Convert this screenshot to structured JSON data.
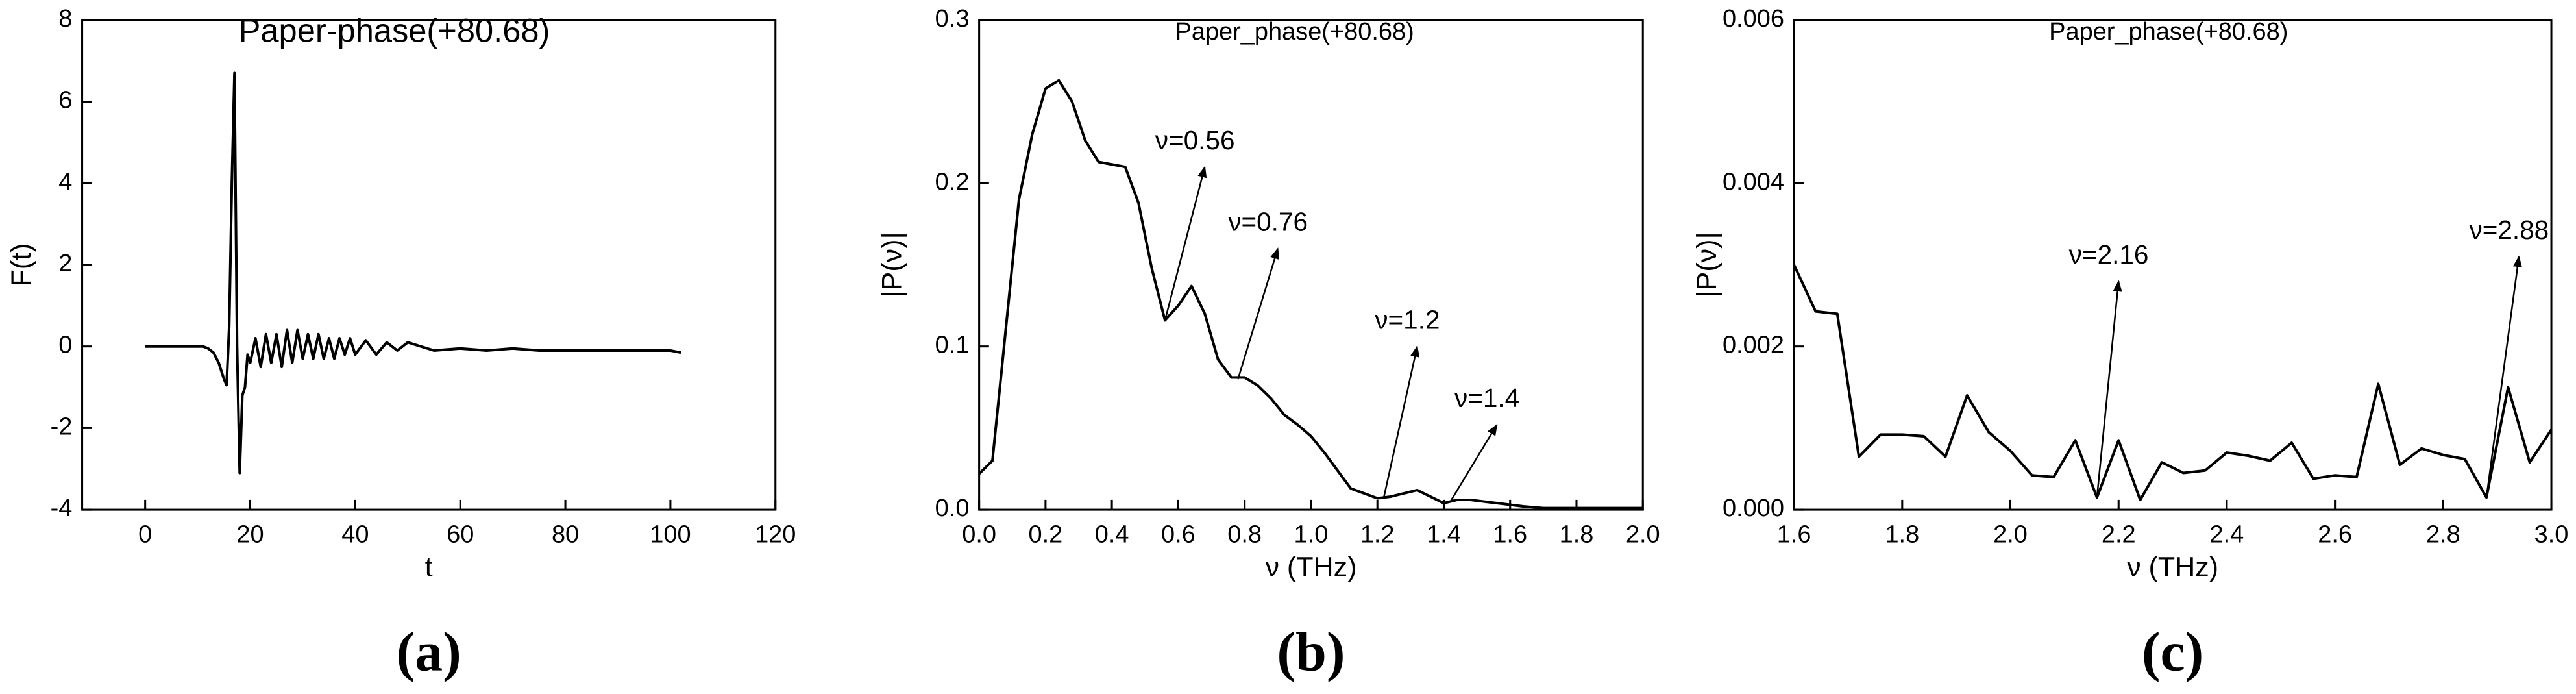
{
  "chart_data": [
    {
      "type": "line",
      "title": "Paper-phase(+80.68)",
      "panel_label": "(a)",
      "xlabel": "t",
      "ylabel": "F(t)",
      "xlim": [
        -12,
        120
      ],
      "ylim": [
        -4,
        8
      ],
      "xticks": [
        0,
        20,
        40,
        60,
        80,
        100,
        120
      ],
      "yticks": [
        -4,
        -2,
        0,
        2,
        4,
        6,
        8
      ],
      "x": [
        0,
        2,
        4,
        6,
        8,
        10,
        11,
        12,
        13,
        14,
        15,
        15.5,
        16,
        16.5,
        17,
        17.5,
        18,
        18.5,
        19,
        19.5,
        20,
        21,
        22,
        23,
        24,
        25,
        26,
        27,
        28,
        29,
        30,
        31,
        32,
        33,
        34,
        35,
        36,
        37,
        38,
        39,
        40,
        42,
        44,
        46,
        48,
        50,
        55,
        60,
        65,
        70,
        75,
        80,
        85,
        90,
        95,
        100,
        102
      ],
      "series": [
        {
          "color": "#000000",
          "values": [
            0,
            0,
            0,
            0,
            0,
            0,
            0,
            -0.05,
            -0.15,
            -0.4,
            -0.8,
            -0.95,
            0.5,
            4,
            6.7,
            0,
            -3.1,
            -1.2,
            -1,
            -0.2,
            -0.4,
            0.2,
            -0.5,
            0.3,
            -0.4,
            0.3,
            -0.5,
            0.4,
            -0.4,
            0.4,
            -0.3,
            0.3,
            -0.3,
            0.3,
            -0.3,
            0.2,
            -0.3,
            0.2,
            -0.2,
            0.2,
            -0.2,
            0.15,
            -0.2,
            0.1,
            -0.1,
            0.1,
            -0.1,
            -0.05,
            -0.1,
            -0.05,
            -0.1,
            -0.1,
            -0.1,
            -0.1,
            -0.1,
            -0.1,
            -0.15
          ]
        }
      ],
      "annotations": []
    },
    {
      "type": "line",
      "title": "Paper_phase(+80.68)",
      "panel_label": "(b)",
      "xlabel": "ν (THz)",
      "ylabel": "|P(ν)|",
      "xlim": [
        0,
        2
      ],
      "ylim": [
        0,
        0.3
      ],
      "xticks": [
        {
          "value": 0,
          "label": "0.0"
        },
        0.2,
        0.4,
        0.6,
        0.8,
        {
          "value": 1,
          "label": "1.0"
        },
        1.2,
        1.4,
        1.6,
        1.8,
        {
          "value": 2,
          "label": "2.0"
        }
      ],
      "yticks": [
        {
          "value": 0,
          "label": "0.0"
        },
        0.1,
        0.2,
        0.3
      ],
      "x": [
        0,
        0.04,
        0.08,
        0.12,
        0.16,
        0.2,
        0.24,
        0.28,
        0.32,
        0.36,
        0.44,
        0.48,
        0.52,
        0.56,
        0.6,
        0.64,
        0.68,
        0.72,
        0.76,
        0.8,
        0.84,
        0.88,
        0.92,
        0.96,
        1.0,
        1.04,
        1.08,
        1.12,
        1.16,
        1.2,
        1.24,
        1.28,
        1.32,
        1.36,
        1.4,
        1.44,
        1.48,
        1.52,
        1.56,
        1.6,
        1.64,
        1.7,
        1.8,
        1.9,
        2.0
      ],
      "series": [
        {
          "color": "#000000",
          "values": [
            0.022,
            0.03,
            0.11,
            0.19,
            0.23,
            0.258,
            0.263,
            0.25,
            0.226,
            0.213,
            0.21,
            0.188,
            0.148,
            0.116,
            0.125,
            0.137,
            0.12,
            0.092,
            0.081,
            0.081,
            0.076,
            0.068,
            0.058,
            0.052,
            0.045,
            0.035,
            0.024,
            0.013,
            0.01,
            0.007,
            0.008,
            0.01,
            0.012,
            0.008,
            0.004,
            0.006,
            0.006,
            0.005,
            0.004,
            0.003,
            0.002,
            0.001,
            0.001,
            0.001,
            0.001
          ]
        }
      ],
      "annotations": [
        {
          "text": "ν=0.56",
          "xy": [
            0.56,
            0.116
          ],
          "xytext": [
            0.68,
            0.21
          ]
        },
        {
          "text": "ν=0.76",
          "xy": [
            0.78,
            0.08
          ],
          "xytext": [
            0.9,
            0.16
          ]
        },
        {
          "text": "ν=1.2",
          "xy": [
            1.22,
            0.008
          ],
          "xytext": [
            1.32,
            0.1
          ]
        },
        {
          "text": "ν=1.4",
          "xy": [
            1.42,
            0.005
          ],
          "xytext": [
            1.56,
            0.052
          ]
        }
      ]
    },
    {
      "type": "line",
      "title": "Paper_phase(+80.68)",
      "panel_label": "(c)",
      "xlabel": "ν (THz)",
      "ylabel": "|P(ν)|",
      "xlim": [
        1.6,
        3.0
      ],
      "ylim": [
        0,
        0.006
      ],
      "xticks": [
        1.6,
        1.8,
        {
          "value": 2,
          "label": "2.0"
        },
        2.2,
        2.4,
        2.6,
        2.8,
        {
          "value": 3,
          "label": "3.0"
        }
      ],
      "yticks": [
        {
          "value": 0,
          "label": "0.000"
        },
        0.002,
        0.004,
        0.006
      ],
      "x": [
        1.6,
        1.64,
        1.68,
        1.72,
        1.76,
        1.8,
        1.84,
        1.88,
        1.92,
        1.96,
        2.0,
        2.04,
        2.08,
        2.12,
        2.16,
        2.2,
        2.24,
        2.28,
        2.32,
        2.36,
        2.4,
        2.44,
        2.48,
        2.52,
        2.56,
        2.6,
        2.64,
        2.68,
        2.72,
        2.76,
        2.8,
        2.84,
        2.88,
        2.92,
        2.96,
        3.0
      ],
      "series": [
        {
          "color": "#000000",
          "values": [
            0.003,
            0.00243,
            0.0024,
            0.00065,
            0.00092,
            0.00092,
            0.0009,
            0.00065,
            0.0014,
            0.00095,
            0.00072,
            0.00042,
            0.0004,
            0.00085,
            0.00015,
            0.00085,
            0.00012,
            0.00058,
            0.00045,
            0.00048,
            0.0007,
            0.00066,
            0.0006,
            0.00082,
            0.00038,
            0.00042,
            0.0004,
            0.00154,
            0.00055,
            0.00075,
            0.00067,
            0.00062,
            0.00015,
            0.0015,
            0.00058,
            0.00098
          ]
        }
      ],
      "annotations": [
        {
          "text": "ν=2.16",
          "xy": [
            2.16,
            0.00015
          ],
          "xytext": [
            2.2,
            0.0028
          ]
        },
        {
          "text": "ν=2.88",
          "xy": [
            2.88,
            0.00015
          ],
          "xytext": [
            2.94,
            0.0031
          ]
        }
      ]
    }
  ]
}
